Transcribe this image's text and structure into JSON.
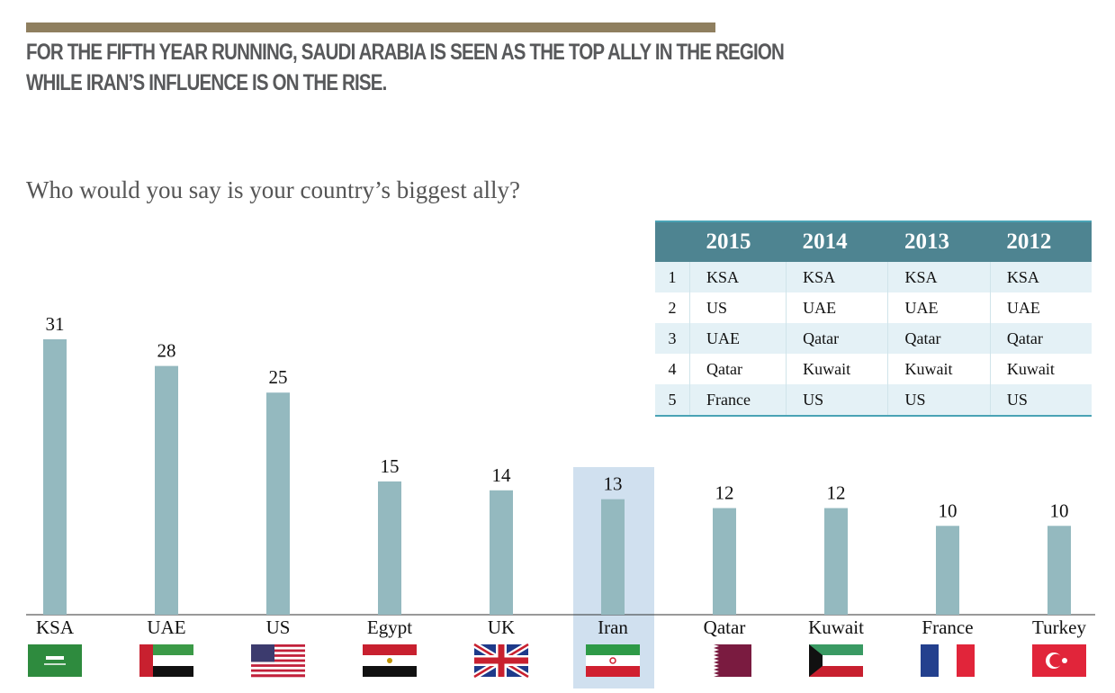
{
  "header": {
    "line1": "FOR THE FIFTH YEAR RUNNING, SAUDI ARABIA IS SEEN AS THE TOP ALLY IN THE REGION",
    "line2": "WHILE IRAN’S INFLUENCE IS ON THE RISE."
  },
  "chart_data": {
    "type": "bar",
    "title": "Who would you say is your country’s biggest ally?",
    "categories": [
      "KSA",
      "UAE",
      "US",
      "Egypt",
      "UK",
      "Iran",
      "Qatar",
      "Kuwait",
      "France",
      "Turkey"
    ],
    "values": [
      31,
      28,
      25,
      15,
      14,
      13,
      12,
      12,
      10,
      10
    ],
    "highlight": "Iran",
    "ylim": [
      0,
      31
    ],
    "colors": {
      "bar": "#94b9bf",
      "highlight": "#d0e0ef"
    }
  },
  "ranking_table": {
    "headers": [
      "",
      "2015",
      "2014",
      "2013",
      "2012"
    ],
    "rows": [
      [
        "1",
        "KSA",
        "KSA",
        "KSA",
        "KSA"
      ],
      [
        "2",
        "US",
        "UAE",
        "UAE",
        "UAE"
      ],
      [
        "3",
        "UAE",
        "Qatar",
        "Qatar",
        "Qatar"
      ],
      [
        "4",
        "Qatar",
        "Kuwait",
        "Kuwait",
        "Kuwait"
      ],
      [
        "5",
        "France",
        "US",
        "US",
        "US"
      ]
    ]
  }
}
